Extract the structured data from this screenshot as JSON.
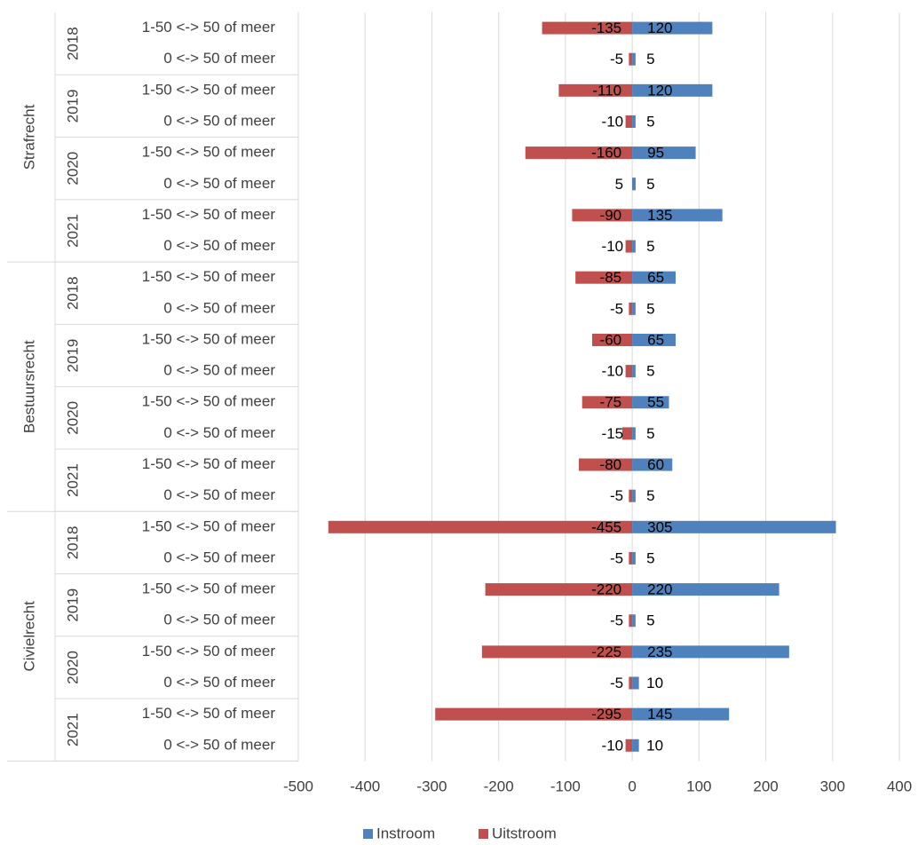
{
  "chart_data": {
    "type": "bar",
    "orientation": "horizontal",
    "stacked": true,
    "xlim": [
      -500,
      400
    ],
    "xticks": [
      -500,
      -400,
      -300,
      -200,
      -100,
      0,
      100,
      200,
      300,
      400
    ],
    "grid": true,
    "legend_position": "bottom",
    "series": [
      {
        "name": "Instroom",
        "color": "#4f81bd"
      },
      {
        "name": "Uitstroom",
        "color": "#c0504d"
      }
    ],
    "groups": [
      {
        "name": "Strafrecht",
        "years": [
          {
            "year": "2018",
            "rows": [
              {
                "label": "1-50 <-> 50 of meer",
                "in": 120,
                "out": -135,
                "in_label": "120",
                "out_label": "-135"
              },
              {
                "label": "0 <-> 50 of meer",
                "in": 5,
                "out": -5,
                "in_label": "5",
                "out_label": "-5"
              }
            ]
          },
          {
            "year": "2019",
            "rows": [
              {
                "label": "1-50 <-> 50 of meer",
                "in": 120,
                "out": -110,
                "in_label": "120",
                "out_label": "-110"
              },
              {
                "label": "0 <-> 50 of meer",
                "in": 5,
                "out": -10,
                "in_label": "5",
                "out_label": "-10"
              }
            ]
          },
          {
            "year": "2020",
            "rows": [
              {
                "label": "1-50 <-> 50 of meer",
                "in": 95,
                "out": -160,
                "in_label": "95",
                "out_label": "-160"
              },
              {
                "label": "0 <-> 50 of meer",
                "in": 5,
                "out": 5,
                "in_label": "5",
                "out_label": "5"
              }
            ]
          },
          {
            "year": "2021",
            "rows": [
              {
                "label": "1-50 <-> 50 of meer",
                "in": 135,
                "out": -90,
                "in_label": "135",
                "out_label": "-90"
              },
              {
                "label": "0 <-> 50 of meer",
                "in": 5,
                "out": -10,
                "in_label": "5",
                "out_label": "-10"
              }
            ]
          }
        ]
      },
      {
        "name": "Bestuursrecht",
        "years": [
          {
            "year": "2018",
            "rows": [
              {
                "label": "1-50 <-> 50 of meer",
                "in": 65,
                "out": -85,
                "in_label": "65",
                "out_label": "-85"
              },
              {
                "label": "0 <-> 50 of meer",
                "in": 5,
                "out": -5,
                "in_label": "5",
                "out_label": "-5"
              }
            ]
          },
          {
            "year": "2019",
            "rows": [
              {
                "label": "1-50 <-> 50 of meer",
                "in": 65,
                "out": -60,
                "in_label": "65",
                "out_label": "-60"
              },
              {
                "label": "0 <-> 50 of meer",
                "in": 5,
                "out": -10,
                "in_label": "5",
                "out_label": "-10"
              }
            ]
          },
          {
            "year": "2020",
            "rows": [
              {
                "label": "1-50 <-> 50 of meer",
                "in": 55,
                "out": -75,
                "in_label": "55",
                "out_label": "-75"
              },
              {
                "label": "0 <-> 50 of meer",
                "in": 5,
                "out": -15,
                "in_label": "5",
                "out_label": "-15"
              }
            ]
          },
          {
            "year": "2021",
            "rows": [
              {
                "label": "1-50 <-> 50 of meer",
                "in": 60,
                "out": -80,
                "in_label": "60",
                "out_label": "-80"
              },
              {
                "label": "0 <-> 50 of meer",
                "in": 5,
                "out": -5,
                "in_label": "5",
                "out_label": "-5"
              }
            ]
          }
        ]
      },
      {
        "name": "Civielrecht",
        "years": [
          {
            "year": "2018",
            "rows": [
              {
                "label": "1-50 <-> 50 of meer",
                "in": 305,
                "out": -455,
                "in_label": "305",
                "out_label": "-455"
              },
              {
                "label": "0 <-> 50 of meer",
                "in": 5,
                "out": -5,
                "in_label": "5",
                "out_label": "-5"
              }
            ]
          },
          {
            "year": "2019",
            "rows": [
              {
                "label": "1-50 <-> 50 of meer",
                "in": 220,
                "out": -220,
                "in_label": "220",
                "out_label": "-220"
              },
              {
                "label": "0 <-> 50 of meer",
                "in": 5,
                "out": -5,
                "in_label": "5",
                "out_label": "-5"
              }
            ]
          },
          {
            "year": "2020",
            "rows": [
              {
                "label": "1-50 <-> 50 of meer",
                "in": 235,
                "out": -225,
                "in_label": "235",
                "out_label": "-225"
              },
              {
                "label": "0 <-> 50 of meer",
                "in": 10,
                "out": -5,
                "in_label": "10",
                "out_label": "-5"
              }
            ]
          },
          {
            "year": "2021",
            "rows": [
              {
                "label": "1-50 <-> 50 of meer",
                "in": 145,
                "out": -295,
                "in_label": "145",
                "out_label": "-295"
              },
              {
                "label": "0 <-> 50 of meer",
                "in": 10,
                "out": -10,
                "in_label": "10",
                "out_label": "-10"
              }
            ]
          }
        ]
      }
    ]
  }
}
